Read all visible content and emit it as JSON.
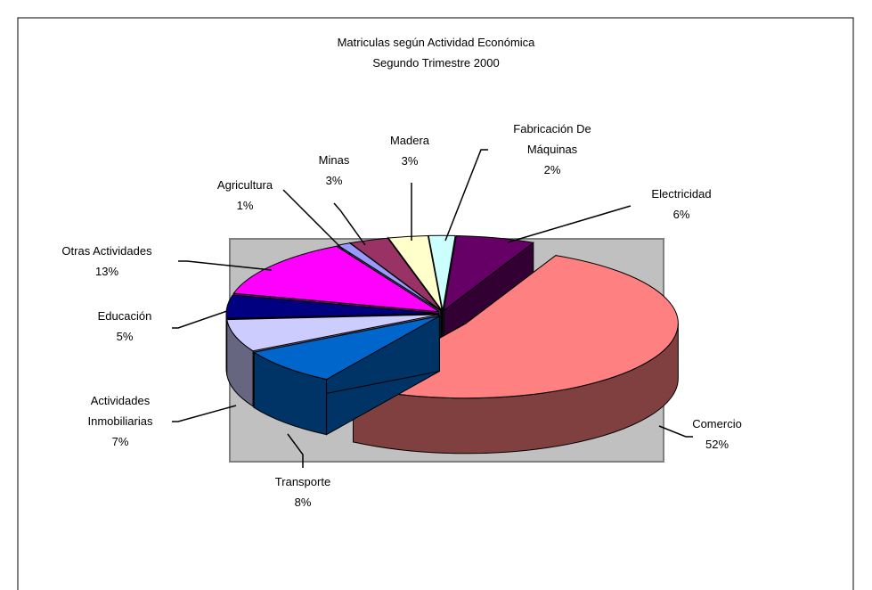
{
  "chart_data": {
    "type": "pie",
    "three_d": true,
    "title": "Matriculas según Actividad Económica",
    "subtitle": "Segundo Trimestre 2000",
    "categories": [
      "Agricultura",
      "Minas",
      "Madera",
      "Fabricación De Máquinas",
      "Electricidad",
      "Comercio",
      "Transporte",
      "Actividades Inmobiliarias",
      "Educación",
      "Otras Actividades"
    ],
    "values": [
      1,
      3,
      3,
      2,
      6,
      52,
      8,
      7,
      5,
      13
    ],
    "value_labels": [
      "1%",
      "3%",
      "3%",
      "2%",
      "6%",
      "52%",
      "8%",
      "7%",
      "5%",
      "13%"
    ],
    "colors": [
      "#9999FF",
      "#993366",
      "#FFFFCC",
      "#CCFFFF",
      "#660066",
      "#FF8080",
      "#0066CC",
      "#CCCCFF",
      "#000080",
      "#FF00FF"
    ]
  }
}
